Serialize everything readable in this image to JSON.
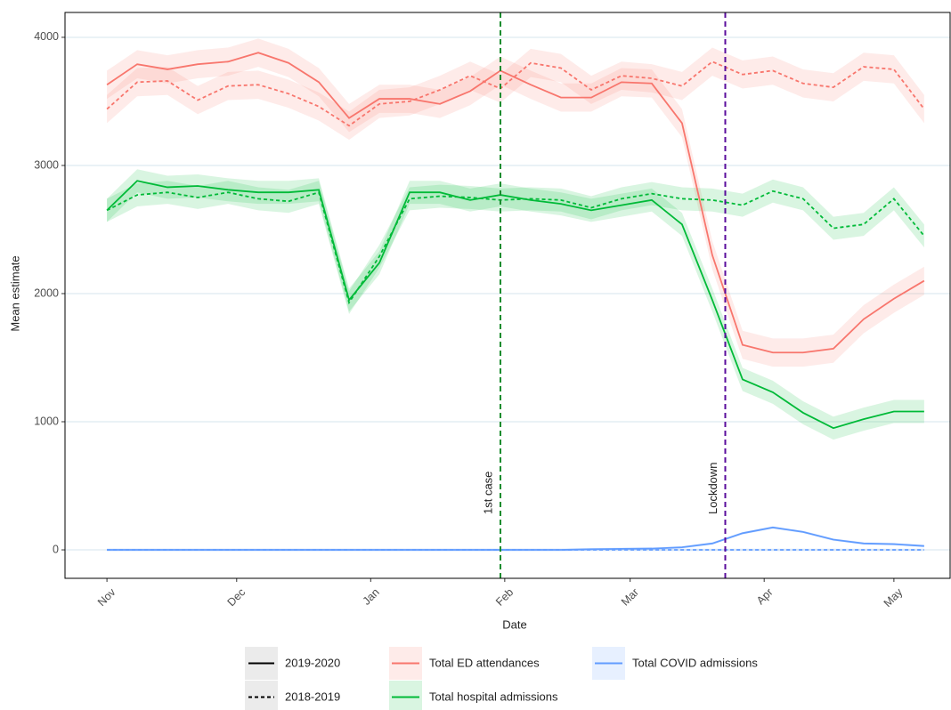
{
  "chart_data": {
    "type": "line",
    "x_label": "Date",
    "y_label": "Mean estimate",
    "x": [
      0,
      7,
      14,
      21,
      28,
      35,
      42,
      49,
      56,
      63,
      70,
      77,
      84,
      91,
      98,
      105,
      112,
      119,
      126,
      133,
      140,
      147,
      154,
      161,
      168,
      175,
      182,
      189
    ],
    "xlim": [
      -9.7,
      195
    ],
    "xticks": [
      {
        "value": 0,
        "label": "Nov"
      },
      {
        "value": 30,
        "label": "Dec"
      },
      {
        "value": 61,
        "label": "Jan"
      },
      {
        "value": 92,
        "label": "Feb"
      },
      {
        "value": 121,
        "label": "Mar"
      },
      {
        "value": 152,
        "label": "Apr"
      },
      {
        "value": 182,
        "label": "May"
      }
    ],
    "ylim": [
      -222,
      4194
    ],
    "yticks": [
      0,
      1000,
      2000,
      3000,
      4000
    ],
    "grid": true,
    "linetypes": [
      {
        "name": "2019-2020",
        "dash": "none"
      },
      {
        "name": "2018-2019",
        "dash": "4 3"
      }
    ],
    "series": [
      {
        "name": "Total ED attendances",
        "color": "#F8766D",
        "ci": 110,
        "values": [
          [
            3630,
            3790,
            3750,
            3790,
            3810,
            3880,
            3800,
            3650,
            3370,
            3520,
            3520,
            3480,
            3580,
            3740,
            3630,
            3530,
            3530,
            3650,
            3640,
            3330,
            2300,
            1600,
            1540,
            1540,
            1570,
            1800,
            1960,
            2100
          ],
          [
            3440,
            3650,
            3660,
            3510,
            3620,
            3630,
            3560,
            3460,
            3310,
            3480,
            3500,
            3590,
            3700,
            3600,
            3800,
            3760,
            3590,
            3700,
            3680,
            3620,
            3810,
            3710,
            3740,
            3640,
            3610,
            3770,
            3750,
            3440
          ]
        ]
      },
      {
        "name": "Total hospital admissions",
        "color": "#00BA38",
        "ci": 90,
        "values": [
          [
            2650,
            2880,
            2830,
            2840,
            2810,
            2790,
            2790,
            2810,
            1950,
            2240,
            2790,
            2790,
            2730,
            2770,
            2730,
            2700,
            2650,
            2690,
            2730,
            2540,
            1950,
            1330,
            1230,
            1070,
            950,
            1020,
            1080,
            1080
          ],
          [
            2650,
            2770,
            2790,
            2750,
            2790,
            2740,
            2720,
            2790,
            1930,
            2290,
            2740,
            2760,
            2750,
            2730,
            2740,
            2730,
            2670,
            2740,
            2780,
            2740,
            2730,
            2690,
            2800,
            2740,
            2510,
            2540,
            2740,
            2450
          ]
        ]
      },
      {
        "name": "Total COVID admissions",
        "color": "#619CFF",
        "ci": 10,
        "values": [
          [
            0,
            0,
            0,
            0,
            0,
            0,
            0,
            0,
            0,
            0,
            0,
            0,
            0,
            0,
            0,
            0,
            5,
            8,
            10,
            20,
            50,
            130,
            175,
            140,
            80,
            50,
            45,
            30
          ],
          [
            0,
            0,
            0,
            0,
            0,
            0,
            0,
            0,
            0,
            0,
            0,
            0,
            0,
            0,
            0,
            0,
            0,
            0,
            0,
            0,
            0,
            0,
            0,
            0,
            0,
            0,
            0,
            0
          ]
        ]
      }
    ],
    "annotations": [
      {
        "label": "1st case",
        "x": 91,
        "color": "#1a8c2e"
      },
      {
        "label": "Lockdown",
        "x": 143,
        "color": "#5a0d9c"
      }
    ]
  }
}
